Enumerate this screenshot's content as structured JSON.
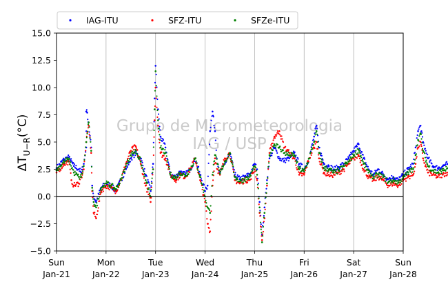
{
  "chart_data": {
    "type": "scatter",
    "title": "",
    "xlabel": "",
    "ylabel": "ΔT U−R (°C)",
    "ylabel_parts": {
      "delta": "ΔT",
      "sub": "U−R",
      "unit": "(°C)"
    },
    "ylim": [
      -5.0,
      15.0
    ],
    "yticks": [
      -5.0,
      -2.5,
      0.0,
      2.5,
      5.0,
      7.5,
      10.0,
      12.5,
      15.0
    ],
    "ytick_labels": [
      "−5.0",
      "−2.5",
      "0.0",
      "2.5",
      "5.0",
      "7.5",
      "10.0",
      "12.5",
      "15.0"
    ],
    "xlim_days": [
      0,
      7
    ],
    "xticks": [
      {
        "day": "Sun",
        "date": "Jan-21"
      },
      {
        "day": "Mon",
        "date": "Jan-22"
      },
      {
        "day": "Tue",
        "date": "Jan-23"
      },
      {
        "day": "Wed",
        "date": "Jan-24"
      },
      {
        "day": "Thu",
        "date": "Jan-25"
      },
      {
        "day": "Fri",
        "date": "Jan-26"
      },
      {
        "day": "Sat",
        "date": "Jan-27"
      },
      {
        "day": "Sun",
        "date": "Jan-28"
      }
    ],
    "grid": "vertical",
    "legend": "top-left-outside",
    "watermark": [
      "Grupo de Micrometeorologia",
      "IAG / USP"
    ],
    "reference_line_y": 0,
    "series": [
      {
        "name": "IAG-ITU",
        "color": "#0000ff",
        "points": [
          [
            0.0,
            2.6
          ],
          [
            0.15,
            3.4
          ],
          [
            0.25,
            3.6
          ],
          [
            0.35,
            2.8
          ],
          [
            0.45,
            2.5
          ],
          [
            0.5,
            2.2
          ],
          [
            0.55,
            3.0
          ],
          [
            0.6,
            4.5
          ],
          [
            0.65,
            6.5
          ],
          [
            0.6,
            7.8
          ],
          [
            0.62,
            7.7
          ],
          [
            0.7,
            4.5
          ],
          [
            0.72,
            1.0
          ],
          [
            0.75,
            0.0
          ],
          [
            0.8,
            -0.5
          ],
          [
            0.9,
            0.8
          ],
          [
            1.0,
            1.2
          ],
          [
            1.1,
            1.0
          ],
          [
            1.2,
            0.5
          ],
          [
            1.3,
            1.5
          ],
          [
            1.4,
            2.5
          ],
          [
            1.5,
            3.5
          ],
          [
            1.6,
            4.0
          ],
          [
            1.7,
            3.5
          ],
          [
            1.8,
            2.0
          ],
          [
            1.9,
            0.5
          ],
          [
            1.95,
            3.0
          ],
          [
            1.98,
            9.0
          ],
          [
            2.0,
            12.0
          ],
          [
            2.05,
            8.0
          ],
          [
            2.1,
            5.5
          ],
          [
            2.2,
            4.5
          ],
          [
            2.3,
            2.0
          ],
          [
            2.4,
            1.8
          ],
          [
            2.5,
            2.3
          ],
          [
            2.6,
            2.0
          ],
          [
            2.7,
            2.5
          ],
          [
            2.8,
            3.5
          ],
          [
            2.9,
            2.0
          ],
          [
            3.0,
            0.5
          ],
          [
            3.05,
            1.0
          ],
          [
            3.1,
            6.0
          ],
          [
            3.15,
            7.8
          ],
          [
            3.2,
            6.0
          ],
          [
            3.25,
            3.0
          ],
          [
            3.3,
            2.2
          ],
          [
            3.4,
            3.0
          ],
          [
            3.5,
            4.0
          ],
          [
            3.6,
            2.0
          ],
          [
            3.7,
            1.6
          ],
          [
            3.8,
            1.8
          ],
          [
            3.9,
            2.0
          ],
          [
            4.0,
            3.0
          ],
          [
            4.05,
            2.5
          ],
          [
            4.1,
            -0.5
          ],
          [
            4.15,
            -3.5
          ],
          [
            4.2,
            -1.0
          ],
          [
            4.25,
            1.5
          ],
          [
            4.3,
            3.5
          ],
          [
            4.4,
            4.5
          ],
          [
            4.5,
            3.5
          ],
          [
            4.6,
            3.3
          ],
          [
            4.7,
            3.5
          ],
          [
            4.8,
            4.0
          ],
          [
            4.9,
            3.0
          ],
          [
            5.0,
            2.5
          ],
          [
            5.1,
            3.5
          ],
          [
            5.2,
            5.5
          ],
          [
            5.25,
            6.5
          ],
          [
            5.3,
            4.5
          ],
          [
            5.4,
            3.0
          ],
          [
            5.5,
            2.8
          ],
          [
            5.6,
            2.5
          ],
          [
            5.7,
            2.7
          ],
          [
            5.8,
            3.0
          ],
          [
            5.9,
            3.5
          ],
          [
            6.0,
            4.2
          ],
          [
            6.1,
            4.8
          ],
          [
            6.2,
            3.5
          ],
          [
            6.3,
            2.5
          ],
          [
            6.4,
            2.0
          ],
          [
            6.5,
            2.5
          ],
          [
            6.6,
            2.0
          ],
          [
            6.7,
            1.6
          ],
          [
            6.8,
            1.8
          ],
          [
            6.9,
            1.5
          ],
          [
            7.0,
            2.0
          ],
          [
            7.1,
            2.5
          ],
          [
            7.2,
            3.0
          ],
          [
            7.25,
            4.5
          ],
          [
            7.3,
            6.0
          ],
          [
            7.35,
            6.5
          ],
          [
            7.4,
            5.0
          ],
          [
            7.5,
            3.5
          ],
          [
            7.6,
            2.8
          ],
          [
            7.7,
            2.6
          ],
          [
            7.8,
            2.8
          ],
          [
            7.9,
            3.0
          ]
        ]
      },
      {
        "name": "SFZ-ITU",
        "color": "#ff0000",
        "points": [
          [
            0.0,
            2.2
          ],
          [
            0.15,
            3.0
          ],
          [
            0.25,
            3.2
          ],
          [
            0.3,
            1.5
          ],
          [
            0.35,
            1.0
          ],
          [
            0.45,
            1.2
          ],
          [
            0.5,
            1.8
          ],
          [
            0.55,
            2.5
          ],
          [
            0.6,
            5.0
          ],
          [
            0.65,
            6.5
          ],
          [
            0.7,
            4.0
          ],
          [
            0.72,
            0.5
          ],
          [
            0.75,
            -1.5
          ],
          [
            0.8,
            -2.0
          ],
          [
            0.9,
            0.5
          ],
          [
            1.0,
            1.0
          ],
          [
            1.1,
            0.8
          ],
          [
            1.2,
            0.5
          ],
          [
            1.3,
            1.5
          ],
          [
            1.4,
            3.0
          ],
          [
            1.5,
            4.2
          ],
          [
            1.6,
            4.6
          ],
          [
            1.7,
            3.0
          ],
          [
            1.8,
            1.0
          ],
          [
            1.9,
            -0.5
          ],
          [
            1.95,
            2.5
          ],
          [
            1.98,
            7.0
          ],
          [
            2.0,
            10.0
          ],
          [
            2.05,
            6.5
          ],
          [
            2.1,
            4.0
          ],
          [
            2.2,
            3.5
          ],
          [
            2.3,
            2.0
          ],
          [
            2.4,
            1.5
          ],
          [
            2.5,
            2.0
          ],
          [
            2.6,
            1.8
          ],
          [
            2.7,
            2.5
          ],
          [
            2.8,
            3.5
          ],
          [
            2.9,
            1.5
          ],
          [
            3.0,
            -0.5
          ],
          [
            3.05,
            -2.5
          ],
          [
            3.1,
            -3.2
          ],
          [
            3.15,
            1.0
          ],
          [
            3.2,
            3.5
          ],
          [
            3.25,
            2.5
          ],
          [
            3.3,
            2.0
          ],
          [
            3.4,
            3.5
          ],
          [
            3.5,
            4.0
          ],
          [
            3.6,
            1.5
          ],
          [
            3.7,
            1.2
          ],
          [
            3.8,
            1.5
          ],
          [
            3.9,
            1.5
          ],
          [
            4.0,
            2.5
          ],
          [
            4.05,
            1.5
          ],
          [
            4.1,
            -1.5
          ],
          [
            4.15,
            -4.0
          ],
          [
            4.2,
            -2.0
          ],
          [
            4.25,
            1.0
          ],
          [
            4.3,
            4.0
          ],
          [
            4.4,
            5.5
          ],
          [
            4.5,
            6.0
          ],
          [
            4.6,
            4.5
          ],
          [
            4.7,
            4.0
          ],
          [
            4.8,
            3.5
          ],
          [
            4.9,
            2.0
          ],
          [
            5.0,
            2.0
          ],
          [
            5.1,
            3.5
          ],
          [
            5.2,
            4.5
          ],
          [
            5.25,
            5.0
          ],
          [
            5.3,
            3.5
          ],
          [
            5.4,
            2.2
          ],
          [
            5.5,
            2.0
          ],
          [
            5.6,
            2.0
          ],
          [
            5.7,
            2.2
          ],
          [
            5.8,
            2.5
          ],
          [
            5.9,
            3.0
          ],
          [
            6.0,
            3.5
          ],
          [
            6.1,
            3.8
          ],
          [
            6.2,
            2.5
          ],
          [
            6.3,
            1.8
          ],
          [
            6.4,
            1.5
          ],
          [
            6.5,
            1.8
          ],
          [
            6.6,
            1.5
          ],
          [
            6.7,
            1.0
          ],
          [
            6.8,
            1.2
          ],
          [
            6.9,
            1.0
          ],
          [
            7.0,
            1.5
          ],
          [
            7.1,
            1.8
          ],
          [
            7.2,
            2.0
          ],
          [
            7.25,
            3.0
          ],
          [
            7.3,
            4.5
          ],
          [
            7.35,
            5.0
          ],
          [
            7.4,
            3.5
          ],
          [
            7.5,
            2.2
          ],
          [
            7.6,
            2.0
          ],
          [
            7.7,
            1.8
          ],
          [
            7.8,
            2.0
          ],
          [
            7.9,
            2.2
          ]
        ]
      },
      {
        "name": "SFZe-ITU",
        "color": "#008000",
        "points": [
          [
            0.0,
            2.4
          ],
          [
            0.15,
            3.2
          ],
          [
            0.25,
            3.4
          ],
          [
            0.35,
            2.2
          ],
          [
            0.45,
            1.8
          ],
          [
            0.5,
            1.8
          ],
          [
            0.55,
            2.8
          ],
          [
            0.6,
            5.0
          ],
          [
            0.65,
            6.8
          ],
          [
            0.7,
            4.2
          ],
          [
            0.72,
            0.8
          ],
          [
            0.75,
            -0.5
          ],
          [
            0.8,
            -1.0
          ],
          [
            0.9,
            0.8
          ],
          [
            1.0,
            1.2
          ],
          [
            1.1,
            1.0
          ],
          [
            1.2,
            0.7
          ],
          [
            1.3,
            1.5
          ],
          [
            1.4,
            2.8
          ],
          [
            1.5,
            3.8
          ],
          [
            1.6,
            4.2
          ],
          [
            1.7,
            3.2
          ],
          [
            1.8,
            1.5
          ],
          [
            1.9,
            0.0
          ],
          [
            1.95,
            2.5
          ],
          [
            1.98,
            8.0
          ],
          [
            2.0,
            11.5
          ],
          [
            2.05,
            7.0
          ],
          [
            2.1,
            4.5
          ],
          [
            2.2,
            4.0
          ],
          [
            2.3,
            2.0
          ],
          [
            2.4,
            1.7
          ],
          [
            2.5,
            2.2
          ],
          [
            2.6,
            1.9
          ],
          [
            2.7,
            2.5
          ],
          [
            2.8,
            3.5
          ],
          [
            2.9,
            1.8
          ],
          [
            3.0,
            0.0
          ],
          [
            3.05,
            -1.0
          ],
          [
            3.1,
            -1.5
          ],
          [
            3.15,
            2.0
          ],
          [
            3.2,
            3.8
          ],
          [
            3.25,
            3.0
          ],
          [
            3.3,
            2.1
          ],
          [
            3.4,
            3.2
          ],
          [
            3.5,
            4.0
          ],
          [
            3.6,
            1.8
          ],
          [
            3.7,
            1.4
          ],
          [
            3.8,
            1.6
          ],
          [
            3.9,
            1.8
          ],
          [
            4.0,
            2.8
          ],
          [
            4.05,
            2.0
          ],
          [
            4.1,
            -1.0
          ],
          [
            4.15,
            -4.2
          ],
          [
            4.2,
            -1.5
          ],
          [
            4.25,
            1.2
          ],
          [
            4.3,
            3.8
          ],
          [
            4.4,
            4.8
          ],
          [
            4.5,
            4.5
          ],
          [
            4.6,
            4.0
          ],
          [
            4.7,
            3.8
          ],
          [
            4.8,
            3.8
          ],
          [
            4.9,
            2.5
          ],
          [
            5.0,
            2.3
          ],
          [
            5.1,
            3.5
          ],
          [
            5.2,
            5.0
          ],
          [
            5.25,
            6.0
          ],
          [
            5.3,
            4.0
          ],
          [
            5.4,
            2.6
          ],
          [
            5.5,
            2.5
          ],
          [
            5.6,
            2.2
          ],
          [
            5.7,
            2.4
          ],
          [
            5.8,
            2.8
          ],
          [
            5.9,
            3.2
          ],
          [
            6.0,
            3.8
          ],
          [
            6.1,
            4.3
          ],
          [
            6.2,
            3.0
          ],
          [
            6.3,
            2.2
          ],
          [
            6.4,
            1.8
          ],
          [
            6.5,
            2.0
          ],
          [
            6.6,
            1.8
          ],
          [
            6.7,
            1.3
          ],
          [
            6.8,
            1.5
          ],
          [
            6.9,
            1.3
          ],
          [
            7.0,
            1.7
          ],
          [
            7.1,
            2.2
          ],
          [
            7.2,
            2.5
          ],
          [
            7.25,
            3.8
          ],
          [
            7.3,
            5.2
          ],
          [
            7.35,
            5.8
          ],
          [
            7.4,
            4.2
          ],
          [
            7.5,
            2.8
          ],
          [
            7.6,
            2.4
          ],
          [
            7.7,
            2.2
          ],
          [
            7.8,
            2.4
          ],
          [
            7.9,
            2.6
          ]
        ]
      }
    ]
  }
}
